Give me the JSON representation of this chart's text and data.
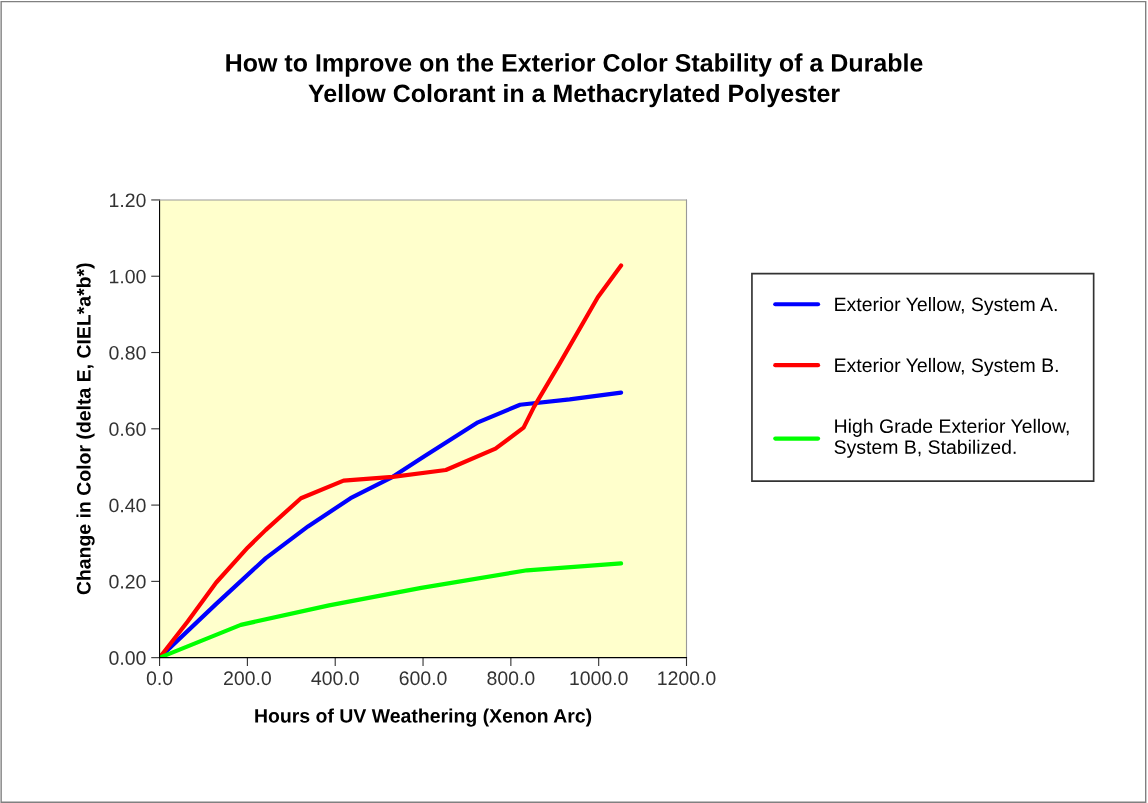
{
  "chart_data": {
    "type": "line",
    "title": "How to Improve on the Exterior Color Stability of a Durable\nYellow Colorant in a Methacrylated Polyester",
    "xlabel": "Hours of UV Weathering (Xenon Arc)",
    "ylabel": "Change in Color (delta E, CIEL*a*b*)",
    "xlim": [
      0,
      1200
    ],
    "ylim": [
      0,
      1.2
    ],
    "xticks": [
      {
        "value": 0,
        "label": "0.0"
      },
      {
        "value": 200,
        "label": "200.0"
      },
      {
        "value": 400,
        "label": "400.0"
      },
      {
        "value": 600,
        "label": "600.0"
      },
      {
        "value": 800,
        "label": "800.0"
      },
      {
        "value": 1000,
        "label": "1000.0"
      },
      {
        "value": 1200,
        "label": "1200.0"
      }
    ],
    "yticks": [
      {
        "value": 0,
        "label": "0.00"
      },
      {
        "value": 0.2,
        "label": "0.20"
      },
      {
        "value": 0.4,
        "label": "0.40"
      },
      {
        "value": 0.6,
        "label": "0.60"
      },
      {
        "value": 0.8,
        "label": "0.80"
      },
      {
        "value": 1.0,
        "label": "1.00"
      },
      {
        "value": 1.2,
        "label": "1.20"
      }
    ],
    "grid": false,
    "legend": "right",
    "marker": "none",
    "line_style": "solid",
    "series": [
      {
        "name": "Exterior Yellow, System A.",
        "color": "#0000ff",
        "x": [
          0,
          129,
          242,
          338,
          435,
          531,
          604,
          725,
          821,
          934,
          1051
        ],
        "values": [
          0,
          0.141,
          0.261,
          0.344,
          0.418,
          0.474,
          0.529,
          0.617,
          0.663,
          0.677,
          0.695
        ]
      },
      {
        "name": "Exterior Yellow, System B.",
        "color": "#ff0000",
        "x": [
          0,
          64,
          129,
          201,
          242,
          322,
          419,
          531,
          652,
          765,
          829,
          853,
          910,
          998,
          1051
        ],
        "values": [
          0,
          0.095,
          0.197,
          0.289,
          0.335,
          0.418,
          0.464,
          0.474,
          0.492,
          0.548,
          0.603,
          0.658,
          0.769,
          0.945,
          1.028
        ]
      },
      {
        "name": "High Grade Exterior Yellow,\nSystem B, Stabilized.",
        "color": "#00ff00",
        "x": [
          0,
          185,
          386,
          596,
          837,
          1051
        ],
        "values": [
          0,
          0.086,
          0.137,
          0.183,
          0.229,
          0.247
        ]
      }
    ]
  }
}
